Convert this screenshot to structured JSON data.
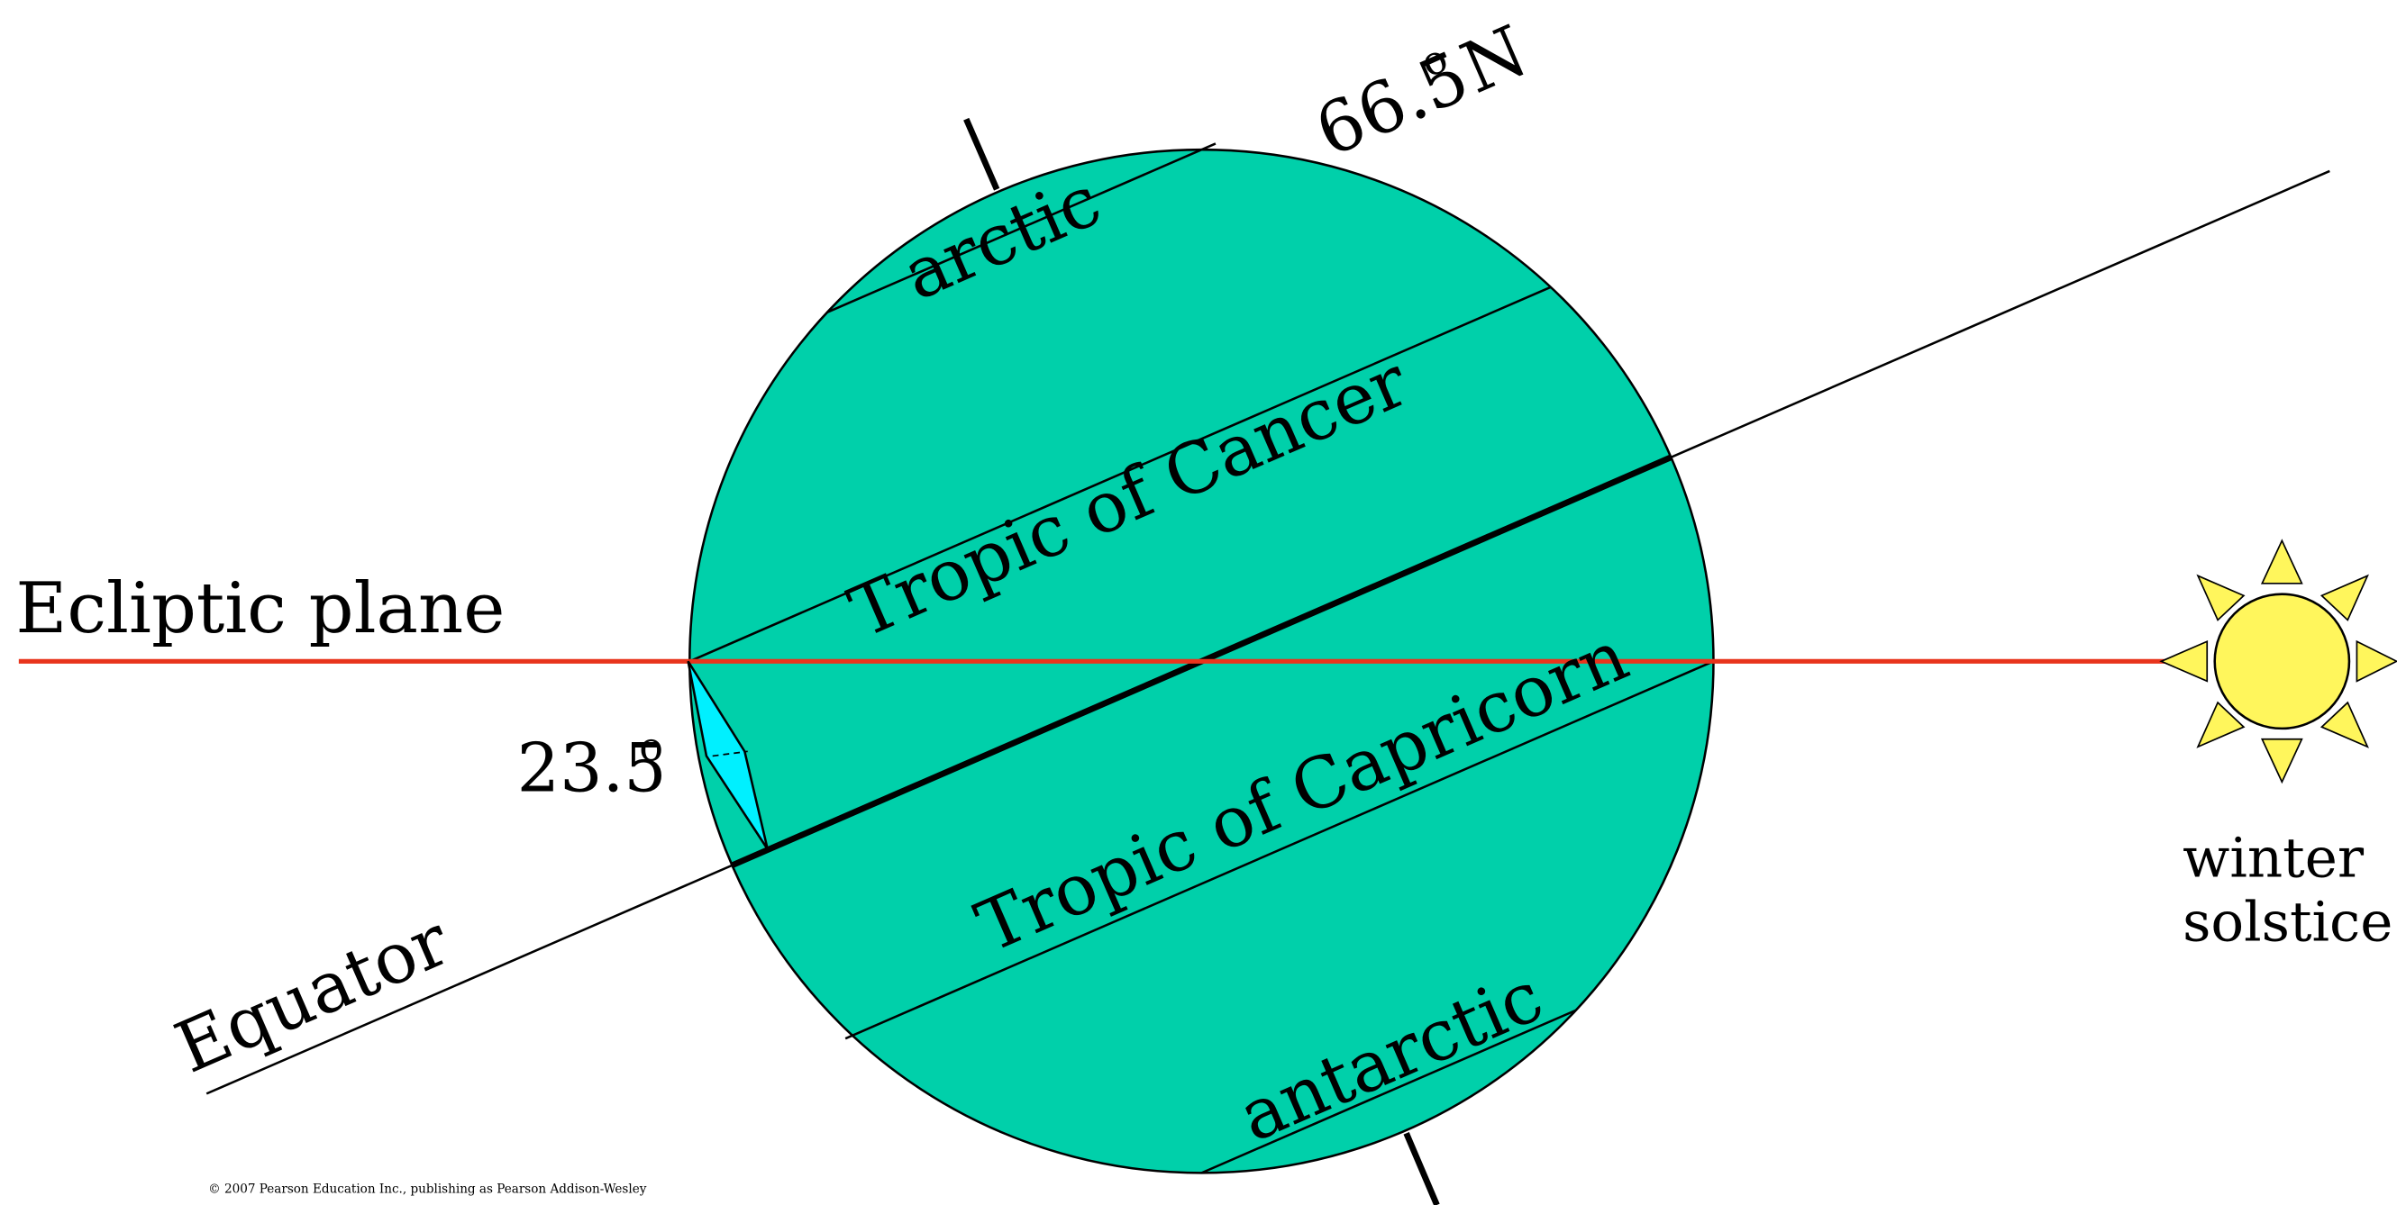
{
  "labels": {
    "latitude": {
      "value": "66.5",
      "degree": "o",
      "direction": "N"
    },
    "arctic": "arctic",
    "tropic_of_cancer": "Tropic of Cancer",
    "tropic_of_capricorn": "Tropic of Capricorn",
    "antarctic": "antarctic",
    "ecliptic_plane": "Ecliptic plane",
    "equator": "Equator",
    "tilt": {
      "value": "23.5",
      "degree": "o"
    },
    "sun": {
      "line1": "winter",
      "line2": "solstice"
    },
    "copyright": "© 2007 Pearson Education Inc., publishing as Pearson Addison-Wesley"
  }
}
